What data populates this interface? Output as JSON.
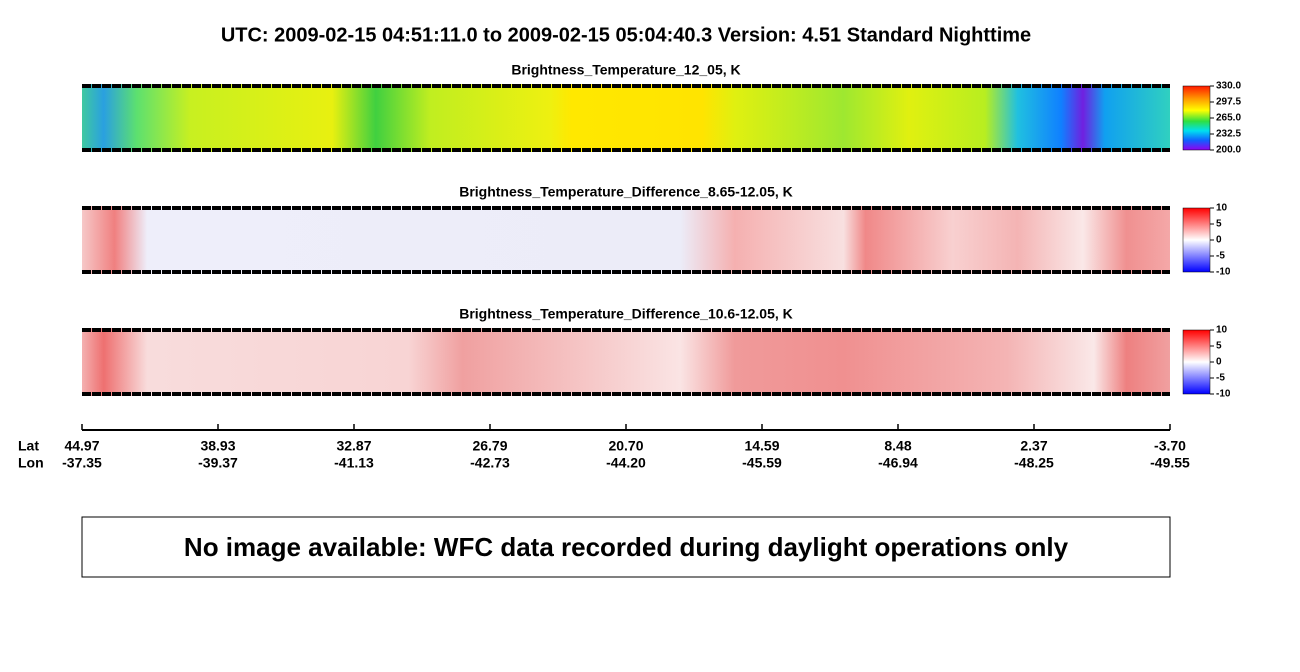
{
  "header": {
    "title": "UTC:  2009-02-15   04:51:11.0  to  2009-02-15   05:04:40.3    Version: 4.51  Standard Nighttime"
  },
  "panels": [
    {
      "title": "Brightness_Temperature_12_05, K",
      "colorbar": {
        "ticks": [
          "330.0",
          "297.5",
          "265.0",
          "232.5",
          "200.0"
        ]
      }
    },
    {
      "title": "Brightness_Temperature_Difference_8.65-12.05, K",
      "colorbar": {
        "ticks": [
          "10",
          "5",
          "0",
          "-5",
          "-10"
        ]
      }
    },
    {
      "title": "Brightness_Temperature_Difference_10.6-12.05, K",
      "colorbar": {
        "ticks": [
          "10",
          "5",
          "0",
          "-5",
          "-10"
        ]
      }
    }
  ],
  "axis": {
    "lat_label": "Lat",
    "lon_label": "Lon",
    "lat": [
      "44.97",
      "38.93",
      "32.87",
      "26.79",
      "20.70",
      "14.59",
      "8.48",
      "2.37",
      "-3.70"
    ],
    "lon": [
      "-37.35",
      "-39.37",
      "-41.13",
      "-42.73",
      "-44.20",
      "-45.59",
      "-46.94",
      "-48.25",
      "-49.55"
    ]
  },
  "message": "No image available: WFC data recorded during daylight operations only"
}
